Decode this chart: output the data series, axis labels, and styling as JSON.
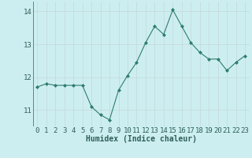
{
  "x": [
    0,
    1,
    2,
    3,
    4,
    5,
    6,
    7,
    8,
    9,
    10,
    11,
    12,
    13,
    14,
    15,
    16,
    17,
    18,
    19,
    20,
    21,
    22,
    23
  ],
  "y": [
    11.7,
    11.8,
    11.75,
    11.75,
    11.75,
    11.75,
    11.1,
    10.85,
    10.7,
    11.6,
    12.05,
    12.45,
    13.05,
    13.55,
    13.3,
    14.05,
    13.55,
    13.05,
    12.75,
    12.55,
    12.55,
    12.2,
    12.45,
    12.65
  ],
  "xlabel": "Humidex (Indice chaleur)",
  "ylim": [
    10.5,
    14.3
  ],
  "xlim": [
    -0.5,
    23.5
  ],
  "yticks": [
    11,
    12,
    13,
    14
  ],
  "xticks": [
    0,
    1,
    2,
    3,
    4,
    5,
    6,
    7,
    8,
    9,
    10,
    11,
    12,
    13,
    14,
    15,
    16,
    17,
    18,
    19,
    20,
    21,
    22,
    23
  ],
  "line_color": "#2e7d6e",
  "marker_color": "#2e7d6e",
  "bg_color": "#cdeef0",
  "grid_color": "#c4d8da",
  "text_color": "#2e5f58",
  "xlabel_fontsize": 7,
  "tick_fontsize": 6.5
}
